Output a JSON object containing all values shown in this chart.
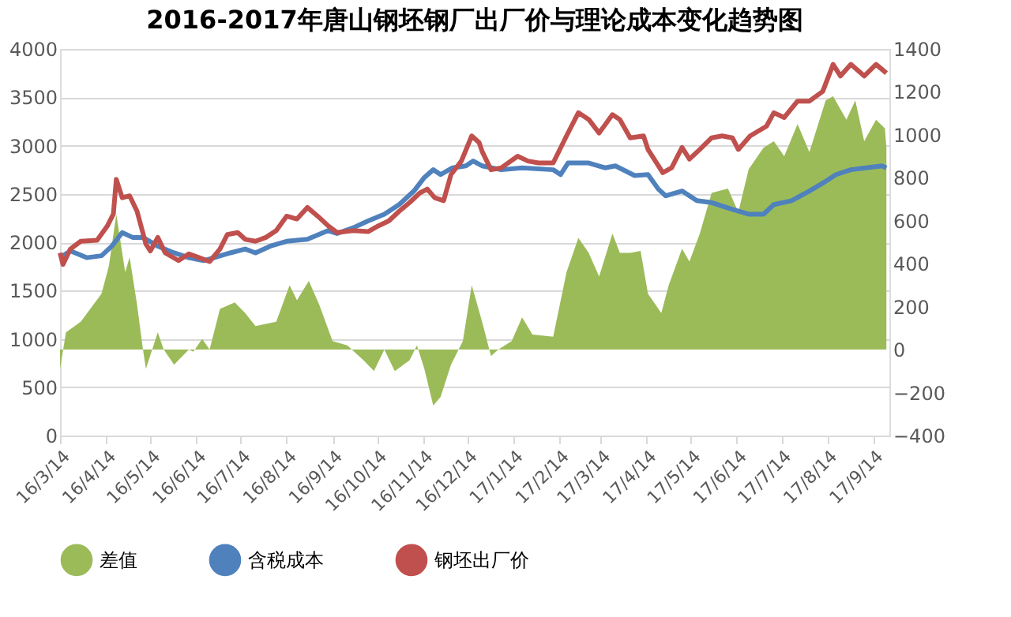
{
  "chart_data": {
    "type": "line",
    "title": "2016-2017年唐山钢坯钢厂出厂价与理论成本变化趋势图",
    "xlim": [
      "2016-03-14",
      "2017-09-25"
    ],
    "xticks": [
      {
        "value": "2016-03-14",
        "label": "16/3/14"
      },
      {
        "value": "2016-04-14",
        "label": "16/4/14"
      },
      {
        "value": "2016-05-14",
        "label": "16/5/14"
      },
      {
        "value": "2016-06-14",
        "label": "16/6/14"
      },
      {
        "value": "2016-07-14",
        "label": "16/7/14"
      },
      {
        "value": "2016-08-14",
        "label": "16/8/14"
      },
      {
        "value": "2016-09-14",
        "label": "16/9/14"
      },
      {
        "value": "2016-10-14",
        "label": "16/10/14"
      },
      {
        "value": "2016-11-14",
        "label": "16/11/14"
      },
      {
        "value": "2016-12-14",
        "label": "16/12/14"
      },
      {
        "value": "2017-01-14",
        "label": "17/1/14"
      },
      {
        "value": "2017-02-14",
        "label": "17/2/14"
      },
      {
        "value": "2017-03-14",
        "label": "17/3/14"
      },
      {
        "value": "2017-04-14",
        "label": "17/4/14"
      },
      {
        "value": "2017-05-14",
        "label": "17/5/14"
      },
      {
        "value": "2017-06-14",
        "label": "17/6/14"
      },
      {
        "value": "2017-07-14",
        "label": "17/7/14"
      },
      {
        "value": "2017-08-14",
        "label": "17/8/14"
      },
      {
        "value": "2017-09-14",
        "label": "17/9/14"
      }
    ],
    "ylim": [
      0,
      4000
    ],
    "yticks": [
      0,
      500,
      1000,
      1500,
      2000,
      2500,
      3000,
      3500,
      4000
    ],
    "y2lim": [
      -400,
      1400
    ],
    "y2ticks": [
      -400,
      -200,
      0,
      200,
      400,
      600,
      800,
      1000,
      1200,
      1400
    ],
    "grid": "y",
    "legend": "bottom",
    "line_style": "solid",
    "marker": "none",
    "series": [
      {
        "name": "差值",
        "type": "area",
        "axis": "y2",
        "color": "#9bbb59",
        "x": [
          "2016-03-14",
          "2016-03-18",
          "2016-03-28",
          "2016-04-11",
          "2016-04-16",
          "2016-04-21",
          "2016-04-27",
          "2016-04-30",
          "2016-05-05",
          "2016-05-09",
          "2016-05-11",
          "2016-05-19",
          "2016-05-23",
          "2016-05-30",
          "2016-06-09",
          "2016-06-12",
          "2016-06-18",
          "2016-06-23",
          "2016-06-30",
          "2016-07-10",
          "2016-07-17",
          "2016-07-24",
          "2016-08-07",
          "2016-08-16",
          "2016-08-21",
          "2016-08-29",
          "2016-09-05",
          "2016-09-14",
          "2016-09-24",
          "2016-10-05",
          "2016-10-12",
          "2016-10-19",
          "2016-10-26",
          "2016-11-05",
          "2016-11-10",
          "2016-11-15",
          "2016-11-21",
          "2016-11-26",
          "2016-12-03",
          "2016-12-11",
          "2016-12-17",
          "2016-12-24",
          "2016-12-30",
          "2017-01-04",
          "2017-01-13",
          "2017-01-20",
          "2017-01-27",
          "2017-02-10",
          "2017-02-19",
          "2017-02-27",
          "2017-03-06",
          "2017-03-13",
          "2017-03-22",
          "2017-03-27",
          "2017-04-03",
          "2017-04-10",
          "2017-04-15",
          "2017-04-24",
          "2017-04-29",
          "2017-05-08",
          "2017-05-13",
          "2017-05-20",
          "2017-05-28",
          "2017-06-08",
          "2017-06-15",
          "2017-06-22",
          "2017-07-02",
          "2017-07-09",
          "2017-07-16",
          "2017-07-25",
          "2017-08-02",
          "2017-08-13",
          "2017-08-18",
          "2017-08-27",
          "2017-09-02",
          "2017-09-08",
          "2017-09-16",
          "2017-09-22",
          "2017-09-23"
        ],
        "values": [
          -90,
          80,
          130,
          260,
          390,
          630,
          360,
          430,
          210,
          0,
          -90,
          80,
          0,
          -70,
          0,
          -10,
          50,
          0,
          190,
          220,
          170,
          110,
          130,
          300,
          230,
          320,
          210,
          40,
          20,
          -50,
          -100,
          0,
          -100,
          -50,
          20,
          -90,
          -260,
          -220,
          -70,
          40,
          300,
          130,
          -30,
          0,
          40,
          150,
          70,
          60,
          360,
          520,
          450,
          340,
          540,
          450,
          450,
          460,
          260,
          170,
          300,
          470,
          410,
          540,
          730,
          750,
          640,
          840,
          940,
          970,
          900,
          1050,
          920,
          1160,
          1180,
          1070,
          1160,
          970,
          1070,
          1030,
          940
        ]
      },
      {
        "name": "含税成本",
        "color": "#4f81bd",
        "x": [
          "2016-03-14",
          "2016-03-21",
          "2016-04-01",
          "2016-04-11",
          "2016-04-18",
          "2016-04-25",
          "2016-05-02",
          "2016-05-09",
          "2016-05-19",
          "2016-05-30",
          "2016-06-09",
          "2016-06-19",
          "2016-06-26",
          "2016-07-07",
          "2016-07-17",
          "2016-07-24",
          "2016-08-03",
          "2016-08-14",
          "2016-08-28",
          "2016-09-11",
          "2016-09-17",
          "2016-09-28",
          "2016-10-08",
          "2016-10-19",
          "2016-10-29",
          "2016-11-08",
          "2016-11-15",
          "2016-11-21",
          "2016-11-26",
          "2016-12-04",
          "2016-12-13",
          "2016-12-18",
          "2016-12-24",
          "2017-01-06",
          "2017-01-20",
          "2017-02-10",
          "2017-02-15",
          "2017-02-20",
          "2017-03-06",
          "2017-03-17",
          "2017-03-24",
          "2017-04-06",
          "2017-04-15",
          "2017-04-22",
          "2017-04-27",
          "2017-05-08",
          "2017-05-18",
          "2017-05-28",
          "2017-06-11",
          "2017-06-22",
          "2017-07-02",
          "2017-07-09",
          "2017-07-21",
          "2017-08-02",
          "2017-08-13",
          "2017-08-20",
          "2017-08-30",
          "2017-09-09",
          "2017-09-20",
          "2017-09-23"
        ],
        "values": [
          1840,
          1910,
          1840,
          1860,
          1960,
          2100,
          2050,
          2050,
          1960,
          1890,
          1840,
          1810,
          1840,
          1890,
          1930,
          1890,
          1960,
          2010,
          2030,
          2120,
          2090,
          2150,
          2220,
          2290,
          2390,
          2530,
          2670,
          2750,
          2700,
          2770,
          2790,
          2840,
          2790,
          2750,
          2770,
          2750,
          2700,
          2820,
          2820,
          2770,
          2790,
          2690,
          2700,
          2550,
          2480,
          2530,
          2430,
          2410,
          2340,
          2290,
          2290,
          2390,
          2430,
          2530,
          2630,
          2700,
          2750,
          2770,
          2790,
          2770
        ]
      },
      {
        "name": "钢坯出厂价",
        "color": "#c0504d",
        "x": [
          "2016-03-14",
          "2016-03-16",
          "2016-03-21",
          "2016-03-28",
          "2016-04-08",
          "2016-04-15",
          "2016-04-19",
          "2016-04-21",
          "2016-04-25",
          "2016-04-30",
          "2016-05-05",
          "2016-05-11",
          "2016-05-14",
          "2016-05-19",
          "2016-05-24",
          "2016-06-02",
          "2016-06-09",
          "2016-06-16",
          "2016-06-23",
          "2016-06-30",
          "2016-07-05",
          "2016-07-12",
          "2016-07-17",
          "2016-07-24",
          "2016-07-31",
          "2016-08-07",
          "2016-08-14",
          "2016-08-21",
          "2016-08-28",
          "2016-09-04",
          "2016-09-11",
          "2016-09-17",
          "2016-09-28",
          "2016-10-08",
          "2016-10-15",
          "2016-10-22",
          "2016-10-29",
          "2016-11-05",
          "2016-11-12",
          "2016-11-17",
          "2016-11-22",
          "2016-11-28",
          "2016-12-03",
          "2016-12-10",
          "2016-12-17",
          "2016-12-22",
          "2016-12-24",
          "2016-12-30",
          "2017-01-06",
          "2017-01-17",
          "2017-01-24",
          "2017-01-31",
          "2017-02-10",
          "2017-02-19",
          "2017-02-27",
          "2017-03-06",
          "2017-03-13",
          "2017-03-22",
          "2017-03-27",
          "2017-04-03",
          "2017-04-12",
          "2017-04-15",
          "2017-04-25",
          "2017-05-01",
          "2017-05-08",
          "2017-05-13",
          "2017-05-20",
          "2017-05-28",
          "2017-06-04",
          "2017-06-11",
          "2017-06-15",
          "2017-06-23",
          "2017-07-04",
          "2017-07-09",
          "2017-07-16",
          "2017-07-25",
          "2017-08-02",
          "2017-08-11",
          "2017-08-18",
          "2017-08-23",
          "2017-08-30",
          "2017-09-08",
          "2017-09-16",
          "2017-09-23"
        ],
        "values": [
          1890,
          1770,
          1930,
          2010,
          2020,
          2170,
          2290,
          2650,
          2460,
          2480,
          2320,
          1980,
          1910,
          2050,
          1890,
          1810,
          1880,
          1840,
          1800,
          1930,
          2080,
          2100,
          2030,
          2010,
          2050,
          2120,
          2270,
          2240,
          2360,
          2270,
          2170,
          2100,
          2120,
          2110,
          2170,
          2220,
          2320,
          2410,
          2510,
          2550,
          2460,
          2430,
          2700,
          2840,
          3100,
          3030,
          2940,
          2750,
          2770,
          2890,
          2840,
          2820,
          2820,
          3100,
          3340,
          3270,
          3130,
          3320,
          3270,
          3080,
          3100,
          2960,
          2720,
          2770,
          2980,
          2860,
          2960,
          3080,
          3100,
          3080,
          2960,
          3100,
          3200,
          3340,
          3290,
          3460,
          3460,
          3560,
          3840,
          3720,
          3840,
          3720,
          3840,
          3750
        ]
      }
    ]
  }
}
